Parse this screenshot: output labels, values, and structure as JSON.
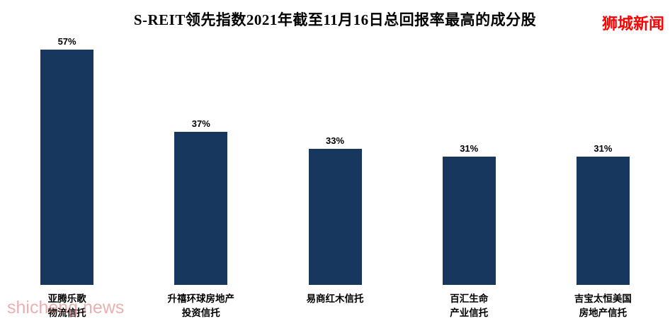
{
  "title": "S-REIT领先指数2021年截至11月16日总回报率最高的成分股",
  "brand": "狮城新闻",
  "watermark": "shicheng.news",
  "colors": {
    "bar": "#17375E",
    "brand": "#FF0000",
    "watermark": "#D97070"
  },
  "chart_data": {
    "type": "bar",
    "title": "S-REIT领先指数2021年截至11月16日总回报率最高的成分股",
    "categories": [
      "亚腾乐歌\n物流信托",
      "升禧环球房地产\n投资信托",
      "易商红木信托",
      "百汇生命\n产业信托",
      "吉宝太恒美国\n房地产信托"
    ],
    "values": [
      57,
      37,
      33,
      31,
      31
    ],
    "value_labels": [
      "57%",
      "37%",
      "33%",
      "31%",
      "31%"
    ],
    "xlabel": "",
    "ylabel": "",
    "ylim": [
      0,
      60
    ],
    "grid": false,
    "legend": false,
    "bar_color": "#17375E"
  }
}
